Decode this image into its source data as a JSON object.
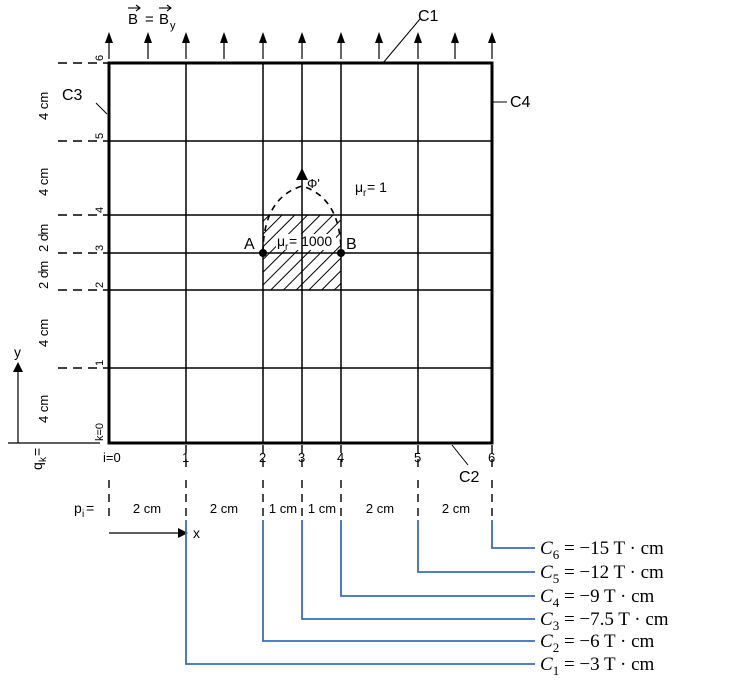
{
  "field": {
    "label_B": "B",
    "label_eq": "=",
    "label_By": "B",
    "label_By_sub": "y"
  },
  "contours": {
    "c1": "C1",
    "c2": "C2",
    "c3": "C3",
    "c4": "C4"
  },
  "flux_label": "Φ'",
  "mu_outer": {
    "mu": "μ",
    "sub": "r",
    "rest": " = 1"
  },
  "mu_inner": {
    "mu": "μ",
    "sub": "r",
    "rest": " = 1000"
  },
  "points": {
    "a": "A",
    "b": "B"
  },
  "axes": {
    "x": "x",
    "y": "y"
  },
  "q_label": {
    "q": "q",
    "sub": "k",
    "eq": " ="
  },
  "p_label": {
    "p": "p",
    "sub": "i",
    "eq": " ="
  },
  "i_ticks": [
    "i=0",
    "1",
    "2",
    "3",
    "4",
    "5",
    "6"
  ],
  "k_ticks": [
    "k=0",
    "1",
    "2",
    "3",
    "4",
    "5",
    "6"
  ],
  "dx_labels": [
    "2 cm",
    "2 cm",
    "1 cm",
    "1 cm",
    "2 cm",
    "2 cm"
  ],
  "dy_labels": [
    "4 cm",
    "4 cm",
    "2 cm",
    "2 cm",
    "4 cm",
    "4 cm"
  ],
  "c_values": [
    {
      "name": "C",
      "sub": "1",
      "value": " = −3 T · cm"
    },
    {
      "name": "C",
      "sub": "2",
      "value": " = −6 T · cm"
    },
    {
      "name": "C",
      "sub": "3",
      "value": " = −7.5 T · cm"
    },
    {
      "name": "C",
      "sub": "4",
      "value": " = −9 T · cm"
    },
    {
      "name": "C",
      "sub": "5",
      "value": " = −12 T · cm"
    },
    {
      "name": "C",
      "sub": "6",
      "value": " = −15 T · cm"
    }
  ],
  "colors": {
    "leader": "#3b6db5",
    "ink": "#000000",
    "hatch": "#000000"
  }
}
